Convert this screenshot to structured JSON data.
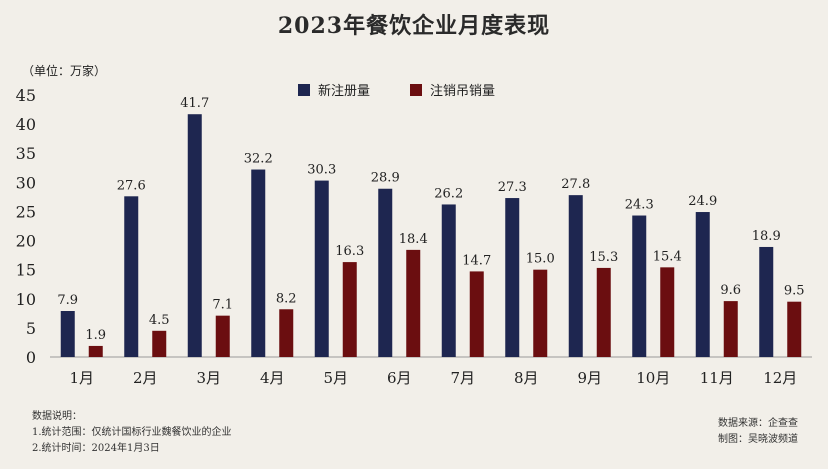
{
  "title": "2023年餐饮企业月度表现",
  "unit_label": "（单位：万家）",
  "legend": [
    {
      "name": "新注册量",
      "color": "#1e2650"
    },
    {
      "name": "注销吊销量",
      "color": "#6b0e10"
    }
  ],
  "chart_data": {
    "type": "bar",
    "categories": [
      "1月",
      "2月",
      "3月",
      "4月",
      "5月",
      "6月",
      "7月",
      "8月",
      "9月",
      "10月",
      "11月",
      "12月"
    ],
    "series": [
      {
        "name": "新注册量",
        "color": "#1e2650",
        "values": [
          7.9,
          27.6,
          41.7,
          32.2,
          30.3,
          28.9,
          26.2,
          27.3,
          27.8,
          24.3,
          24.9,
          18.9
        ]
      },
      {
        "name": "注销吊销量",
        "color": "#6b0e10",
        "values": [
          1.9,
          4.5,
          7.1,
          8.2,
          16.3,
          18.4,
          14.7,
          15.0,
          15.3,
          15.4,
          9.6,
          9.5
        ]
      }
    ],
    "value_labels": [
      [
        "7.9",
        "27.6",
        "41.7",
        "32.2",
        "30.3",
        "28.9",
        "26.2",
        "27.3",
        "27.8",
        "24.3",
        "24.9",
        "18.9"
      ],
      [
        "1.9",
        "4.5",
        "7.1",
        "8.2",
        "16.3",
        "18.4",
        "14.7",
        "15.0",
        "15.3",
        "15.4",
        "9.6",
        "9.5"
      ]
    ],
    "ylim": [
      0,
      45
    ],
    "yticks": [
      0,
      5,
      10,
      15,
      20,
      25,
      30,
      35,
      40,
      45
    ],
    "legend_position": "top-center"
  },
  "notes": {
    "heading": "数据说明：",
    "lines": [
      "1.统计范围：仅统计国标行业魏餐饮业的企业",
      "2.统计时间：2024年1月3日"
    ]
  },
  "source": {
    "data_source": "数据来源：企查查",
    "made_by": "制图：吴晓波频道"
  }
}
